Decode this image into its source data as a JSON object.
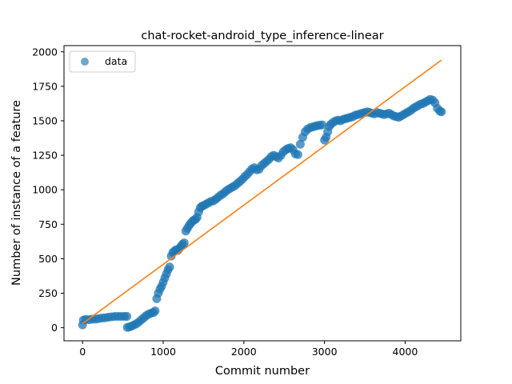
{
  "chart_data": {
    "type": "scatter",
    "title": "chat-rocket-android_type_inference-linear",
    "xlabel": "Commit number",
    "ylabel": "Number of instance of a feature",
    "xlim": [
      -230,
      4690
    ],
    "ylim": [
      -95,
      2045
    ],
    "xticks": [
      0,
      1000,
      2000,
      3000,
      4000
    ],
    "yticks": [
      0,
      250,
      500,
      750,
      1000,
      1250,
      1500,
      1750,
      2000
    ],
    "grid": false,
    "legend_position": "top-left",
    "series": [
      {
        "name": "data",
        "kind": "scatter",
        "color": "#1f77b4",
        "points": [
          [
            0,
            20
          ],
          [
            10,
            55
          ],
          [
            40,
            60
          ],
          [
            80,
            58
          ],
          [
            120,
            62
          ],
          [
            160,
            62
          ],
          [
            200,
            66
          ],
          [
            240,
            70
          ],
          [
            280,
            72
          ],
          [
            320,
            76
          ],
          [
            360,
            79
          ],
          [
            400,
            82
          ],
          [
            440,
            82
          ],
          [
            480,
            82
          ],
          [
            520,
            82
          ],
          [
            550,
            82
          ],
          [
            555,
            2
          ],
          [
            580,
            5
          ],
          [
            610,
            12
          ],
          [
            640,
            20
          ],
          [
            670,
            30
          ],
          [
            700,
            42
          ],
          [
            730,
            58
          ],
          [
            760,
            72
          ],
          [
            790,
            88
          ],
          [
            820,
            98
          ],
          [
            850,
            106
          ],
          [
            880,
            110
          ],
          [
            900,
            122
          ],
          [
            920,
            210
          ],
          [
            940,
            250
          ],
          [
            960,
            280
          ],
          [
            980,
            300
          ],
          [
            1000,
            330
          ],
          [
            1020,
            360
          ],
          [
            1040,
            390
          ],
          [
            1060,
            420
          ],
          [
            1080,
            440
          ],
          [
            1100,
            520
          ],
          [
            1120,
            545
          ],
          [
            1140,
            555
          ],
          [
            1160,
            565
          ],
          [
            1180,
            560
          ],
          [
            1200,
            575
          ],
          [
            1220,
            590
          ],
          [
            1240,
            605
          ],
          [
            1260,
            615
          ],
          [
            1280,
            700
          ],
          [
            1300,
            720
          ],
          [
            1320,
            740
          ],
          [
            1340,
            755
          ],
          [
            1360,
            770
          ],
          [
            1380,
            780
          ],
          [
            1400,
            785
          ],
          [
            1420,
            800
          ],
          [
            1440,
            840
          ],
          [
            1460,
            870
          ],
          [
            1480,
            880
          ],
          [
            1500,
            885
          ],
          [
            1530,
            895
          ],
          [
            1560,
            905
          ],
          [
            1590,
            915
          ],
          [
            1620,
            920
          ],
          [
            1650,
            930
          ],
          [
            1680,
            945
          ],
          [
            1710,
            960
          ],
          [
            1740,
            970
          ],
          [
            1770,
            985
          ],
          [
            1800,
            1000
          ],
          [
            1830,
            1010
          ],
          [
            1860,
            1020
          ],
          [
            1890,
            1030
          ],
          [
            1920,
            1045
          ],
          [
            1950,
            1060
          ],
          [
            1980,
            1075
          ],
          [
            2010,
            1095
          ],
          [
            2040,
            1110
          ],
          [
            2070,
            1130
          ],
          [
            2100,
            1150
          ],
          [
            2130,
            1160
          ],
          [
            2160,
            1145
          ],
          [
            2190,
            1150
          ],
          [
            2220,
            1175
          ],
          [
            2250,
            1190
          ],
          [
            2280,
            1205
          ],
          [
            2310,
            1220
          ],
          [
            2340,
            1240
          ],
          [
            2370,
            1250
          ],
          [
            2400,
            1240
          ],
          [
            2430,
            1230
          ],
          [
            2460,
            1250
          ],
          [
            2490,
            1275
          ],
          [
            2520,
            1290
          ],
          [
            2550,
            1300
          ],
          [
            2580,
            1305
          ],
          [
            2610,
            1290
          ],
          [
            2640,
            1260
          ],
          [
            2670,
            1255
          ],
          [
            2700,
            1330
          ],
          [
            2730,
            1380
          ],
          [
            2760,
            1420
          ],
          [
            2790,
            1440
          ],
          [
            2820,
            1450
          ],
          [
            2850,
            1455
          ],
          [
            2880,
            1460
          ],
          [
            2910,
            1465
          ],
          [
            2940,
            1468
          ],
          [
            2970,
            1470
          ],
          [
            3000,
            1360
          ],
          [
            3020,
            1380
          ],
          [
            3040,
            1420
          ],
          [
            3060,
            1460
          ],
          [
            3080,
            1475
          ],
          [
            3110,
            1490
          ],
          [
            3140,
            1500
          ],
          [
            3170,
            1505
          ],
          [
            3200,
            1500
          ],
          [
            3230,
            1510
          ],
          [
            3260,
            1515
          ],
          [
            3290,
            1520
          ],
          [
            3320,
            1525
          ],
          [
            3350,
            1530
          ],
          [
            3380,
            1540
          ],
          [
            3410,
            1545
          ],
          [
            3440,
            1550
          ],
          [
            3470,
            1555
          ],
          [
            3500,
            1560
          ],
          [
            3530,
            1565
          ],
          [
            3560,
            1560
          ],
          [
            3590,
            1555
          ],
          [
            3620,
            1550
          ],
          [
            3650,
            1560
          ],
          [
            3680,
            1555
          ],
          [
            3710,
            1550
          ],
          [
            3740,
            1545
          ],
          [
            3770,
            1550
          ],
          [
            3800,
            1555
          ],
          [
            3830,
            1545
          ],
          [
            3860,
            1535
          ],
          [
            3890,
            1530
          ],
          [
            3920,
            1525
          ],
          [
            3950,
            1535
          ],
          [
            3980,
            1545
          ],
          [
            4010,
            1555
          ],
          [
            4040,
            1565
          ],
          [
            4070,
            1575
          ],
          [
            4100,
            1590
          ],
          [
            4130,
            1600
          ],
          [
            4160,
            1610
          ],
          [
            4190,
            1620
          ],
          [
            4220,
            1625
          ],
          [
            4250,
            1635
          ],
          [
            4280,
            1645
          ],
          [
            4310,
            1655
          ],
          [
            4340,
            1650
          ],
          [
            4370,
            1630
          ],
          [
            4400,
            1590
          ],
          [
            4430,
            1570
          ],
          [
            4450,
            1565
          ]
        ]
      },
      {
        "name": "",
        "kind": "line",
        "color": "#ff7f0e",
        "points": [
          [
            0,
            30
          ],
          [
            4450,
            1940
          ]
        ]
      }
    ]
  }
}
